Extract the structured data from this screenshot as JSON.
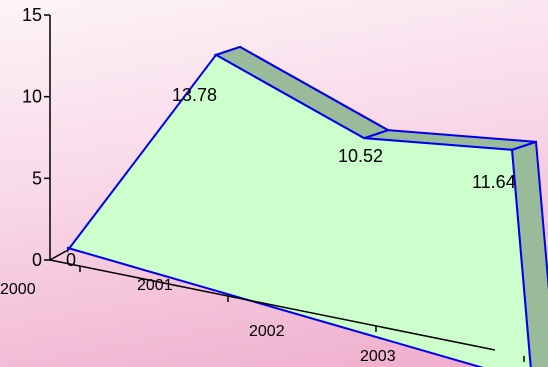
{
  "chart_data": {
    "type": "area",
    "style": "3d",
    "categories": [
      "2000",
      "2001",
      "2002",
      "2003"
    ],
    "series": [
      {
        "values": [
          0,
          13.78,
          10.52,
          11.64
        ]
      }
    ],
    "data_labels": [
      "0",
      "13.78",
      "10.52",
      "11.64"
    ],
    "y_ticks": [
      "0",
      "5",
      "10",
      "15"
    ],
    "ylim": [
      0,
      15
    ],
    "title": "",
    "xlabel": "",
    "ylabel": "",
    "legend": "none",
    "grid": false,
    "colors": {
      "front_face": "#ccffcc",
      "top_ribbon": "#99bb99",
      "outline": "#0000ee",
      "axis": "#000000"
    }
  }
}
